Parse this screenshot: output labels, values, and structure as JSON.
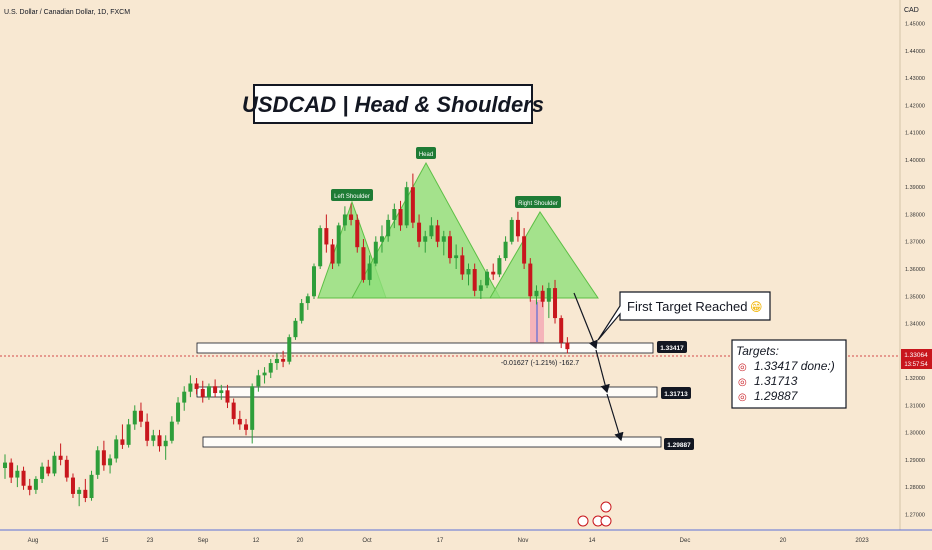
{
  "header": {
    "symbol_line": "U.S. Dollar / Canadian Dollar, 1D, FXCM",
    "currency": "CAD"
  },
  "title": "USDCAD | Head & Shoulders",
  "price_axis": {
    "labels": [
      "1.27000",
      "1.28000",
      "1.29000",
      "1.30000",
      "1.31000",
      "1.32000",
      "1.33000",
      "1.34000",
      "1.35000",
      "1.36000",
      "1.37000",
      "1.38000",
      "1.39000",
      "1.40000",
      "1.41000",
      "1.42000",
      "1.43000",
      "1.44000",
      "1.45000"
    ],
    "current_price": "1.33064",
    "countdown": "13:57:54"
  },
  "time_axis": {
    "labels": [
      "Aug",
      "15",
      "23",
      "Sep",
      "12",
      "20",
      "Oct",
      "17",
      "Nov",
      "14",
      "Dec",
      "20",
      "2023"
    ]
  },
  "pattern_labels": {
    "left_shoulder": "Left Shoulder",
    "head": "Head",
    "right_shoulder": "Right Shoulder"
  },
  "measure_label": "-0.01627 (-1.21%) -162.7",
  "callout": {
    "text": "First Target Reached",
    "emoji": "😁"
  },
  "levels": [
    {
      "name": "level-1",
      "label": "1.33417",
      "value": 1.33417
    },
    {
      "name": "level-2",
      "label": "1.31713",
      "value": 1.31713
    },
    {
      "name": "level-3",
      "label": "1.29887",
      "value": 1.29887
    }
  ],
  "targets_box": {
    "title": "Targets:",
    "items": [
      "1.33417 done:)",
      "1.31713",
      "1.29887"
    ]
  },
  "colors": {
    "background": "#f8e8d2",
    "bull": "#2e9e3a",
    "bear": "#c8161d",
    "pattern_fill": "#8ee07a",
    "label_green": "#1e7b35",
    "label_dark": "#131722",
    "price_tag": "#c8161d"
  },
  "chart_data": {
    "type": "candlestick",
    "ylim": [
      1.265,
      1.455
    ],
    "candles": [
      [
        1.287,
        1.292,
        1.283,
        1.289
      ],
      [
        1.289,
        1.2905,
        1.2815,
        1.2835
      ],
      [
        1.2835,
        1.288,
        1.28,
        1.286
      ],
      [
        1.286,
        1.2875,
        1.279,
        1.2805
      ],
      [
        1.2805,
        1.283,
        1.277,
        1.279
      ],
      [
        1.279,
        1.284,
        1.2775,
        1.283
      ],
      [
        1.283,
        1.289,
        1.2815,
        1.2875
      ],
      [
        1.2875,
        1.29,
        1.284,
        1.285
      ],
      [
        1.285,
        1.293,
        1.284,
        1.2915
      ],
      [
        1.2915,
        1.296,
        1.288,
        1.29
      ],
      [
        1.29,
        1.2915,
        1.282,
        1.2835
      ],
      [
        1.2835,
        1.285,
        1.276,
        1.2775
      ],
      [
        1.2775,
        1.28,
        1.273,
        1.279
      ],
      [
        1.279,
        1.283,
        1.2745,
        1.276
      ],
      [
        1.276,
        1.286,
        1.275,
        1.2845
      ],
      [
        1.2845,
        1.295,
        1.283,
        1.2935
      ],
      [
        1.2935,
        1.297,
        1.286,
        1.288
      ],
      [
        1.288,
        1.292,
        1.285,
        1.2905
      ],
      [
        1.2905,
        1.299,
        1.289,
        1.2975
      ],
      [
        1.2975,
        1.303,
        1.294,
        1.2955
      ],
      [
        1.2955,
        1.305,
        1.2945,
        1.303
      ],
      [
        1.303,
        1.31,
        1.301,
        1.308
      ],
      [
        1.308,
        1.311,
        1.302,
        1.304
      ],
      [
        1.304,
        1.307,
        1.295,
        1.297
      ],
      [
        1.297,
        1.301,
        1.295,
        1.299
      ],
      [
        1.299,
        1.301,
        1.293,
        1.295
      ],
      [
        1.295,
        1.299,
        1.29,
        1.297
      ],
      [
        1.297,
        1.306,
        1.296,
        1.304
      ],
      [
        1.304,
        1.313,
        1.303,
        1.311
      ],
      [
        1.311,
        1.317,
        1.308,
        1.315
      ],
      [
        1.315,
        1.321,
        1.313,
        1.318
      ],
      [
        1.318,
        1.32,
        1.314,
        1.316
      ],
      [
        1.316,
        1.319,
        1.311,
        1.313
      ],
      [
        1.313,
        1.318,
        1.312,
        1.317
      ],
      [
        1.317,
        1.3195,
        1.313,
        1.3145
      ],
      [
        1.3145,
        1.3175,
        1.312,
        1.3155
      ],
      [
        1.3155,
        1.3175,
        1.309,
        1.311
      ],
      [
        1.311,
        1.3125,
        1.303,
        1.305
      ],
      [
        1.305,
        1.308,
        1.301,
        1.303
      ],
      [
        1.303,
        1.305,
        1.299,
        1.301
      ],
      [
        1.301,
        1.318,
        1.296,
        1.317
      ],
      [
        1.317,
        1.323,
        1.315,
        1.321
      ],
      [
        1.321,
        1.324,
        1.318,
        1.322
      ],
      [
        1.322,
        1.327,
        1.32,
        1.3255
      ],
      [
        1.3255,
        1.329,
        1.323,
        1.327
      ],
      [
        1.327,
        1.33,
        1.324,
        1.326
      ],
      [
        1.326,
        1.336,
        1.325,
        1.335
      ],
      [
        1.335,
        1.342,
        1.334,
        1.341
      ],
      [
        1.341,
        1.349,
        1.34,
        1.3475
      ],
      [
        1.3475,
        1.351,
        1.345,
        1.35
      ],
      [
        1.35,
        1.362,
        1.349,
        1.361
      ],
      [
        1.361,
        1.376,
        1.36,
        1.375
      ],
      [
        1.375,
        1.38,
        1.366,
        1.369
      ],
      [
        1.369,
        1.371,
        1.36,
        1.362
      ],
      [
        1.362,
        1.377,
        1.361,
        1.376
      ],
      [
        1.376,
        1.383,
        1.374,
        1.38
      ],
      [
        1.38,
        1.384,
        1.376,
        1.378
      ],
      [
        1.378,
        1.38,
        1.366,
        1.368
      ],
      [
        1.368,
        1.371,
        1.355,
        1.356
      ],
      [
        1.356,
        1.365,
        1.354,
        1.362
      ],
      [
        1.362,
        1.372,
        1.361,
        1.37
      ],
      [
        1.37,
        1.376,
        1.366,
        1.372
      ],
      [
        1.372,
        1.38,
        1.37,
        1.378
      ],
      [
        1.378,
        1.384,
        1.375,
        1.382
      ],
      [
        1.382,
        1.385,
        1.374,
        1.376
      ],
      [
        1.376,
        1.392,
        1.375,
        1.39
      ],
      [
        1.39,
        1.395,
        1.375,
        1.377
      ],
      [
        1.377,
        1.38,
        1.368,
        1.37
      ],
      [
        1.37,
        1.374,
        1.366,
        1.372
      ],
      [
        1.372,
        1.379,
        1.371,
        1.376
      ],
      [
        1.376,
        1.378,
        1.368,
        1.37
      ],
      [
        1.37,
        1.374,
        1.365,
        1.372
      ],
      [
        1.372,
        1.374,
        1.362,
        1.364
      ],
      [
        1.364,
        1.369,
        1.36,
        1.365
      ],
      [
        1.365,
        1.368,
        1.356,
        1.358
      ],
      [
        1.358,
        1.362,
        1.354,
        1.36
      ],
      [
        1.36,
        1.362,
        1.35,
        1.352
      ],
      [
        1.352,
        1.356,
        1.349,
        1.354
      ],
      [
        1.354,
        1.36,
        1.353,
        1.359
      ],
      [
        1.359,
        1.362,
        1.356,
        1.358
      ],
      [
        1.358,
        1.365,
        1.357,
        1.364
      ],
      [
        1.364,
        1.372,
        1.363,
        1.37
      ],
      [
        1.37,
        1.379,
        1.369,
        1.378
      ],
      [
        1.378,
        1.381,
        1.37,
        1.372
      ],
      [
        1.372,
        1.375,
        1.36,
        1.362
      ],
      [
        1.362,
        1.364,
        1.348,
        1.35
      ],
      [
        1.35,
        1.354,
        1.347,
        1.352
      ],
      [
        1.352,
        1.354,
        1.346,
        1.348
      ],
      [
        1.348,
        1.355,
        1.342,
        1.353
      ],
      [
        1.353,
        1.356,
        1.34,
        1.342
      ],
      [
        1.342,
        1.343,
        1.331,
        1.333
      ],
      [
        1.333,
        1.335,
        1.329,
        1.3306
      ]
    ]
  }
}
